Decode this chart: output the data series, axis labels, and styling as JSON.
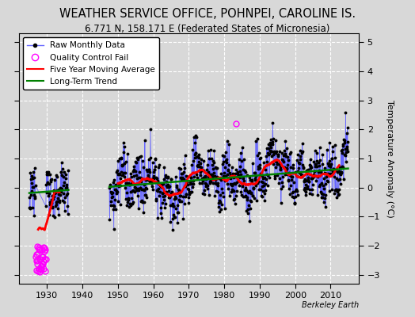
{
  "title": "WEATHER SERVICE OFFICE, POHNPEI, CAROLINE IS.",
  "subtitle": "6.771 N, 158.171 E (Federated States of Micronesia)",
  "ylabel": "Temperature Anomaly (°C)",
  "xlabel_note": "Berkeley Earth",
  "ylim": [
    -3.3,
    5.3
  ],
  "xlim": [
    1922,
    2018
  ],
  "yticks": [
    -3,
    -2,
    -1,
    0,
    1,
    2,
    3,
    4,
    5
  ],
  "xticks": [
    1930,
    1940,
    1950,
    1960,
    1970,
    1980,
    1990,
    2000,
    2010
  ],
  "bg_color": "#d8d8d8",
  "fig_color": "#d8d8d8",
  "grid_color": "white",
  "line_color": "#6666ff",
  "marker_color": "black",
  "moving_avg_color": "red",
  "trend_color": "green",
  "qc_fail_color": "magenta",
  "title_fontsize": 10.5,
  "subtitle_fontsize": 8.5,
  "legend_fontsize": 7.5,
  "axis_fontsize": 8
}
